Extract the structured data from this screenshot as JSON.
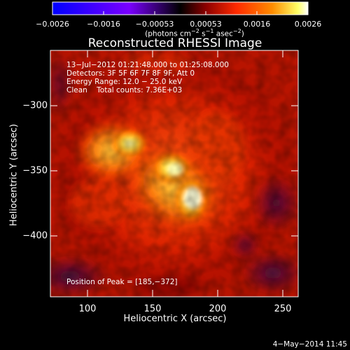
{
  "colorbar": {
    "ticks": [
      "−0.0026",
      "−0.0016",
      "−0.00053",
      "0.00053",
      "0.0016",
      "0.0026"
    ],
    "units_prefix": "(photons cm",
    "units_exp1": "−2",
    "units_mid": " s",
    "units_exp2": "−1",
    "units_mid2": " asec",
    "units_exp3": "−2",
    "units_suffix": ")"
  },
  "title": "Reconstructed RHESSI Image",
  "info": {
    "time_range": "13−Jul−2012 01:21:48.000 to 01:25:08.000",
    "detectors": "Detectors: 3F 5F 6F 7F 8F 9F, Att 0",
    "energy": "Energy Range: 12.0 − 25.0 keV",
    "clean": "Clean    Total counts: 7.36E+03"
  },
  "peak_text": "Position of Peak = [185,−372]",
  "x_axis": {
    "label": "Heliocentric X (arcsec)",
    "ticks": [
      "100",
      "150",
      "200",
      "250"
    ]
  },
  "y_axis": {
    "label": "Heliocentric Y (arcsec)",
    "ticks": [
      "−300",
      "−350",
      "−400"
    ]
  },
  "datestamp": "4−May−2014 11:45",
  "colors": {
    "colorbar_stops": [
      "#0000ff",
      "#7a00ff",
      "#000000",
      "#8b0000",
      "#ff2a00",
      "#ff8c00",
      "#ffff66",
      "#ffffff"
    ],
    "image_low": "#000000",
    "image_mid": "#cc2000",
    "image_high": "#ffffb0",
    "negative": "#2a0a4a"
  }
}
